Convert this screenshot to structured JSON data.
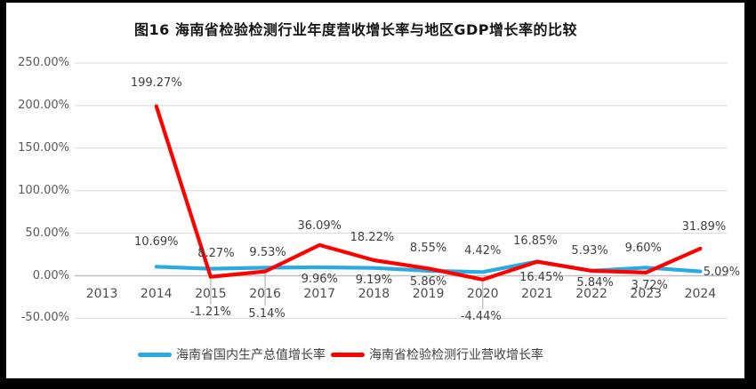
{
  "title": "图16  海南省检验检测行业年度营收增长率与地区GDP增长率的比较",
  "colors": {
    "gdp_line": "#29ABE2",
    "industry_line": "#FE0000",
    "grid": "#D9D9D9",
    "axis": "#C0C0C0",
    "leader": "#A6A6A6",
    "frame": "#000000",
    "label_text": "#3F3F3F",
    "tick_text": "#595959"
  },
  "chart_data": {
    "type": "line",
    "title": "图16  海南省检验检测行业年度营收增长率与地区GDP增长率的比较",
    "categories": [
      "2013",
      "2014",
      "2015",
      "2016",
      "2017",
      "2018",
      "2019",
      "2020",
      "2021",
      "2022",
      "2023",
      "2024"
    ],
    "series": [
      {
        "id": "gdp",
        "name": "海南省国内生产总值增长率",
        "color": "#29ABE2",
        "values": [
          null,
          10.69,
          8.27,
          9.53,
          9.96,
          9.19,
          5.86,
          4.42,
          16.85,
          5.93,
          9.6,
          5.09
        ],
        "label_offsets": [
          null,
          [
            0,
            -27
          ],
          [
            6,
            -17
          ],
          [
            3,
            -16
          ],
          [
            0,
            14
          ],
          [
            0,
            14
          ],
          [
            0,
            13
          ],
          [
            0,
            -23
          ],
          [
            -2,
            -22
          ],
          [
            -2,
            -22
          ],
          [
            -3,
            -21
          ],
          [
            24,
            1
          ]
        ]
      },
      {
        "id": "industry",
        "name": "海南省检验检测行业营收增长率",
        "color": "#FE0000",
        "values": [
          null,
          199.27,
          -1.21,
          5.14,
          36.09,
          18.22,
          8.55,
          -4.44,
          16.45,
          5.84,
          3.72,
          31.89
        ],
        "label_offsets": [
          null,
          [
            0,
            -26
          ],
          [
            0,
            40
          ],
          [
            2,
            48
          ],
          [
            0,
            -21
          ],
          [
            -2,
            -25
          ],
          [
            0,
            -22
          ],
          [
            -2,
            42
          ],
          [
            5,
            18
          ],
          [
            4,
            14
          ],
          [
            4,
            15
          ],
          [
            4,
            -24
          ]
        ]
      }
    ],
    "y_ticks": [
      250,
      200,
      150,
      100,
      50,
      0,
      -50
    ],
    "y_tick_labels": [
      "250.00%",
      "200.00%",
      "150.00%",
      "100.00%",
      "50.00%",
      "0.00%",
      "-50.00%"
    ],
    "ylim": [
      -50,
      250
    ],
    "xlabel": "",
    "ylabel": "",
    "grid": true,
    "legend_position": "bottom",
    "label_format": "0.00%",
    "leader_lines": [
      {
        "series": 1,
        "index": 2
      },
      {
        "series": 1,
        "index": 3
      },
      {
        "series": 1,
        "index": 7
      }
    ]
  }
}
